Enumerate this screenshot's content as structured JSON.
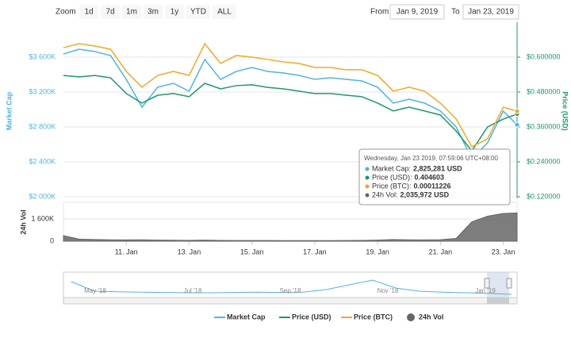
{
  "zoom": {
    "label": "Zoom",
    "buttons": [
      "1d",
      "7d",
      "1m",
      "3m",
      "1y",
      "YTD",
      "ALL"
    ]
  },
  "range": {
    "from_label": "From",
    "from": "Jan 9, 2019",
    "to_label": "To",
    "to": "Jan 23, 2019"
  },
  "chart_data": {
    "type": "line",
    "x": [
      9,
      9.5,
      10,
      10.5,
      11,
      11.5,
      12,
      12.5,
      13,
      13.5,
      14,
      14.5,
      15,
      15.5,
      16,
      16.5,
      17,
      17.5,
      18,
      18.5,
      19,
      19.5,
      20,
      20.5,
      21,
      21.5,
      22,
      22.5,
      23,
      23.44
    ],
    "xlim": [
      9,
      23.44
    ],
    "xticks": [
      {
        "value": 11,
        "label": "11. Jan"
      },
      {
        "value": 13,
        "label": "13. Jan"
      },
      {
        "value": 15,
        "label": "15. Jan"
      },
      {
        "value": 17,
        "label": "17. Jan"
      },
      {
        "value": 19,
        "label": "19. Jan"
      },
      {
        "value": 21,
        "label": "21. Jan"
      },
      {
        "value": 23,
        "label": "23. Jan"
      }
    ],
    "ylabel": "Market Cap",
    "y2label": "Price (USD)",
    "ylim": [
      2000000,
      4000000
    ],
    "yticks": [
      {
        "value": 2000000,
        "label": "$2 000K"
      },
      {
        "value": 2400000,
        "label": "$2 400K"
      },
      {
        "value": 2800000,
        "label": "$2 800K"
      },
      {
        "value": 3200000,
        "label": "$3 200K"
      },
      {
        "value": 3600000,
        "label": "$3 600K"
      }
    ],
    "y2lim": [
      0.12,
      0.72
    ],
    "y2ticks": [
      {
        "value": 0.12,
        "label": "$0.120000"
      },
      {
        "value": 0.24,
        "label": "$0.240000"
      },
      {
        "value": 0.36,
        "label": "$0.360000"
      },
      {
        "value": 0.48,
        "label": "$0.480000"
      },
      {
        "value": 0.6,
        "label": "$0.600000"
      }
    ],
    "y3lim": [
      5e-05,
      0.000177
    ],
    "grid": true,
    "legend": "bottom",
    "series": [
      {
        "name": "Market Cap",
        "color": "#4db3e6",
        "axis": "y",
        "values": [
          3636000,
          3691000,
          3664000,
          3618000,
          3345000,
          3027000,
          3255000,
          3300000,
          3209000,
          3573000,
          3345000,
          3436000,
          3482000,
          3436000,
          3418000,
          3391000,
          3345000,
          3364000,
          3345000,
          3327000,
          3255000,
          3073000,
          3118000,
          3073000,
          2982000,
          2800000,
          2436000,
          2618000,
          2982000,
          2825281
        ]
      },
      {
        "name": "Price (USD)",
        "color": "#1b9a6a",
        "axis": "y2",
        "values": [
          0.537,
          0.532,
          0.537,
          0.529,
          0.475,
          0.442,
          0.469,
          0.475,
          0.464,
          0.51,
          0.491,
          0.502,
          0.505,
          0.496,
          0.491,
          0.483,
          0.475,
          0.475,
          0.469,
          0.464,
          0.442,
          0.415,
          0.428,
          0.415,
          0.401,
          0.346,
          0.278,
          0.36,
          0.387,
          0.404603
        ]
      },
      {
        "name": "Price (BTC)",
        "color": "#f5a623",
        "axis": "y3",
        "values": [
          0.0001585,
          0.0001614,
          0.0001597,
          0.0001574,
          0.0001412,
          0.0001297,
          0.0001383,
          0.0001412,
          0.0001383,
          0.0001614,
          0.000147,
          0.0001528,
          0.0001516,
          0.0001499,
          0.0001481,
          0.000147,
          0.0001441,
          0.0001441,
          0.0001424,
          0.0001424,
          0.0001383,
          0.0001268,
          0.0001297,
          0.0001268,
          0.0001181,
          0.0001066,
          8.64e-05,
          9.21e-05,
          0.0001152,
          0.00011226
        ]
      },
      {
        "name": "24h Vol",
        "color": "#666666",
        "axis": "volume",
        "values": [
          400000,
          150000,
          120000,
          100000,
          90000,
          100000,
          80000,
          70000,
          60000,
          80000,
          60000,
          50000,
          50000,
          50000,
          40000,
          40000,
          40000,
          40000,
          50000,
          60000,
          80000,
          120000,
          100000,
          90000,
          110000,
          200000,
          1400000,
          1800000,
          2000000,
          2035972
        ]
      }
    ],
    "volume": {
      "label": "24h Vol",
      "ylim": [
        0,
        2800000
      ],
      "yticks": [
        0,
        {
          "value": 1600000,
          "label": "1 600K"
        }
      ]
    },
    "tooltip": {
      "header": "Wednesday, Jan 23 2019, 07:59:06 UTC+08:00",
      "items": [
        {
          "label": "Market Cap:",
          "value": "2,825,281 USD"
        },
        {
          "label": "Price (USD):",
          "value": "0.404603"
        },
        {
          "label": "Price (BTC):",
          "value": "0.00011226"
        },
        {
          "label": "24h Vol:",
          "value": "2,035,972 USD"
        }
      ]
    },
    "navigator": {
      "labels": [
        "May '18",
        "Jul '18",
        "Sep '18",
        "Nov '18",
        "Jan '19"
      ],
      "ylim": [
        0,
        10000000
      ],
      "values": [
        7000000,
        4000000,
        3800000,
        3700000,
        3600000,
        3500000,
        3500000,
        3600000,
        3700000,
        3600000,
        3700000,
        4500000,
        6000000,
        7500000,
        5000000,
        4000000,
        3700000,
        3500000,
        3300000,
        3000000
      ]
    }
  }
}
